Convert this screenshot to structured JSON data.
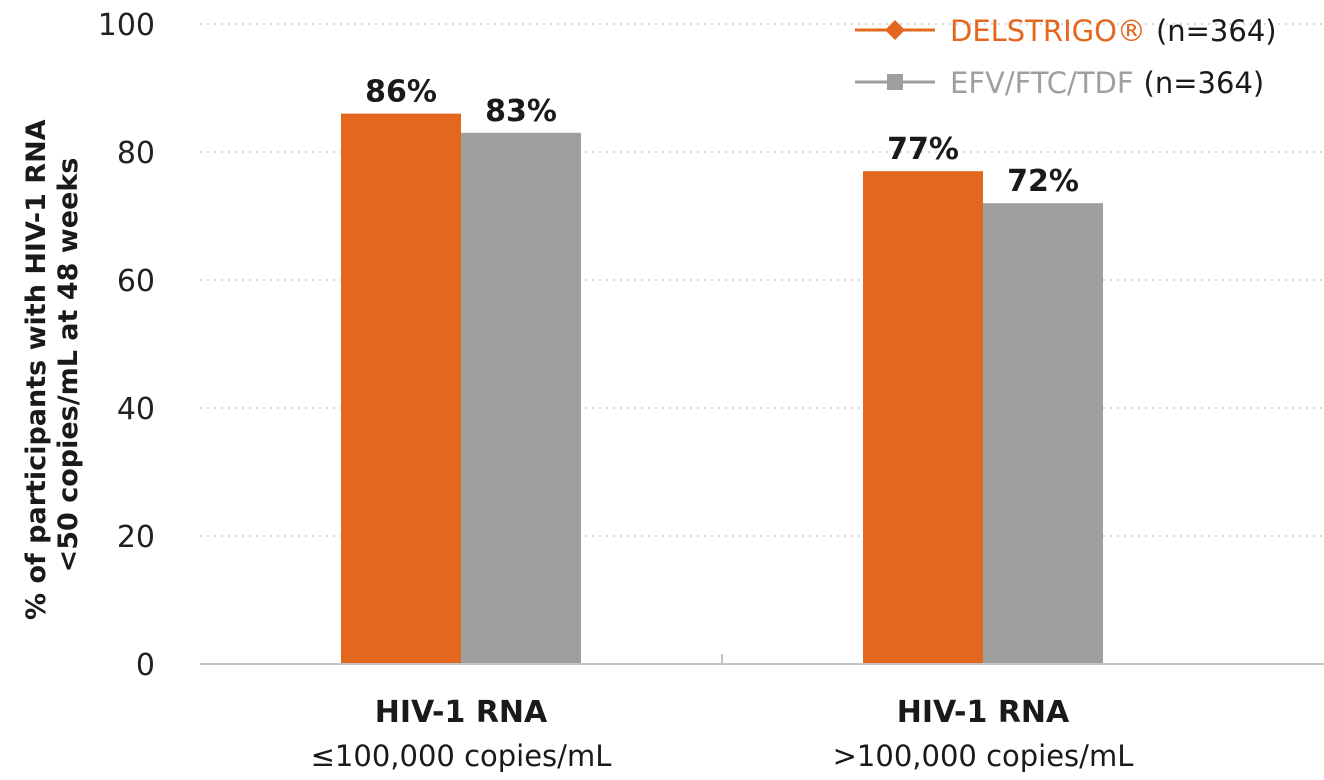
{
  "chart_data": {
    "type": "bar",
    "categories": [
      {
        "title": "HIV-1 RNA",
        "subtitle": "≤100,000 copies/mL"
      },
      {
        "title": "HIV-1 RNA",
        "subtitle": ">100,000 copies/mL"
      }
    ],
    "series": [
      {
        "name": "DELSTRIGO®",
        "n_label": "(n=364)",
        "color": "#E4671F",
        "marker": "diamond",
        "values": [
          86,
          77
        ],
        "labels": [
          "86%",
          "77%"
        ]
      },
      {
        "name": "EFV/FTC/TDF",
        "n_label": "(n=364)",
        "color": "#9EA0A0",
        "marker": "square",
        "values": [
          83,
          72
        ],
        "labels": [
          "83%",
          "72%"
        ]
      }
    ],
    "ylabel_lines": [
      "% of participants with HIV-1 RNA",
      "<50 copies/mL at 48 weeks"
    ],
    "ylim": [
      0,
      100
    ],
    "yticks": [
      0,
      20,
      40,
      60,
      80,
      100
    ],
    "ytick_labels": [
      "0",
      "20",
      "40",
      "60",
      "80",
      "100"
    ],
    "grid": "horizontal-dotted",
    "legend_position": "top-right"
  }
}
